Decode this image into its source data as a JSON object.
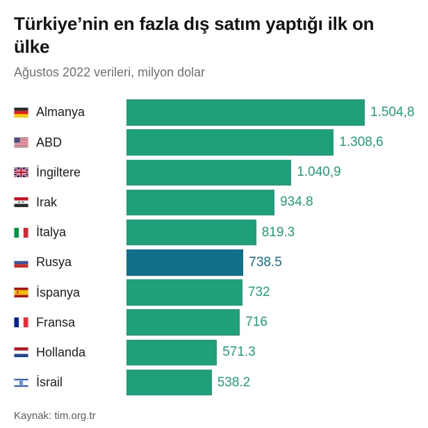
{
  "header": {
    "title": "Türkiye’nin en fazla dış satım yaptığı ilk on ülke",
    "subtitle": "Ağustos 2022 verileri, milyon dolar"
  },
  "footer": {
    "source": "Kaynak: tim.org.tr"
  },
  "colors": {
    "bar": "#1fa07a",
    "highlight_bar": "#10708c",
    "title_text": "#141414",
    "subtitle_text": "#6f6f6f",
    "label_text": "#1c1c1c",
    "source_text": "#5a5a5a",
    "background": "#ffffff"
  },
  "chart_data": {
    "type": "bar",
    "orientation": "horizontal",
    "title": "Türkiye’nin en fazla dış satım yaptığı ilk on ülke",
    "subtitle": "Ağustos 2022 verileri, milyon dolar",
    "unit": "milyon dolar",
    "xlim": [
      0,
      1504.8
    ],
    "grid": false,
    "legend": false,
    "highlighted_category": "Rusya",
    "categories": [
      "Almanya",
      "ABD",
      "İngiltere",
      "Irak",
      "İtalya",
      "Rusya",
      "İspanya",
      "Fransa",
      "Hollanda",
      "İsrail"
    ],
    "values": [
      1504.8,
      1308.6,
      1040.9,
      934.8,
      819.3,
      738.5,
      732,
      716,
      571.3,
      538.2
    ],
    "rows": [
      {
        "country": "Almanya",
        "flag": "germany",
        "value": 1504.8,
        "value_label": "1.504,8",
        "highlighted": false
      },
      {
        "country": "ABD",
        "flag": "usa",
        "value": 1308.6,
        "value_label": "1.308,6",
        "highlighted": false
      },
      {
        "country": "İngiltere",
        "flag": "uk",
        "value": 1040.9,
        "value_label": "1.040,9",
        "highlighted": false
      },
      {
        "country": "Irak",
        "flag": "iraq",
        "value": 934.8,
        "value_label": "934.8",
        "highlighted": false
      },
      {
        "country": "İtalya",
        "flag": "italy",
        "value": 819.3,
        "value_label": "819.3",
        "highlighted": false
      },
      {
        "country": "Rusya",
        "flag": "russia",
        "value": 738.5,
        "value_label": "738.5",
        "highlighted": true
      },
      {
        "country": "İspanya",
        "flag": "spain",
        "value": 732,
        "value_label": "732",
        "highlighted": false
      },
      {
        "country": "Fransa",
        "flag": "france",
        "value": 716,
        "value_label": "716",
        "highlighted": false
      },
      {
        "country": "Hollanda",
        "flag": "netherlands",
        "value": 571.3,
        "value_label": "571.3",
        "highlighted": false
      },
      {
        "country": "İsrail",
        "flag": "israel",
        "value": 538.2,
        "value_label": "538.2",
        "highlighted": false
      }
    ]
  }
}
